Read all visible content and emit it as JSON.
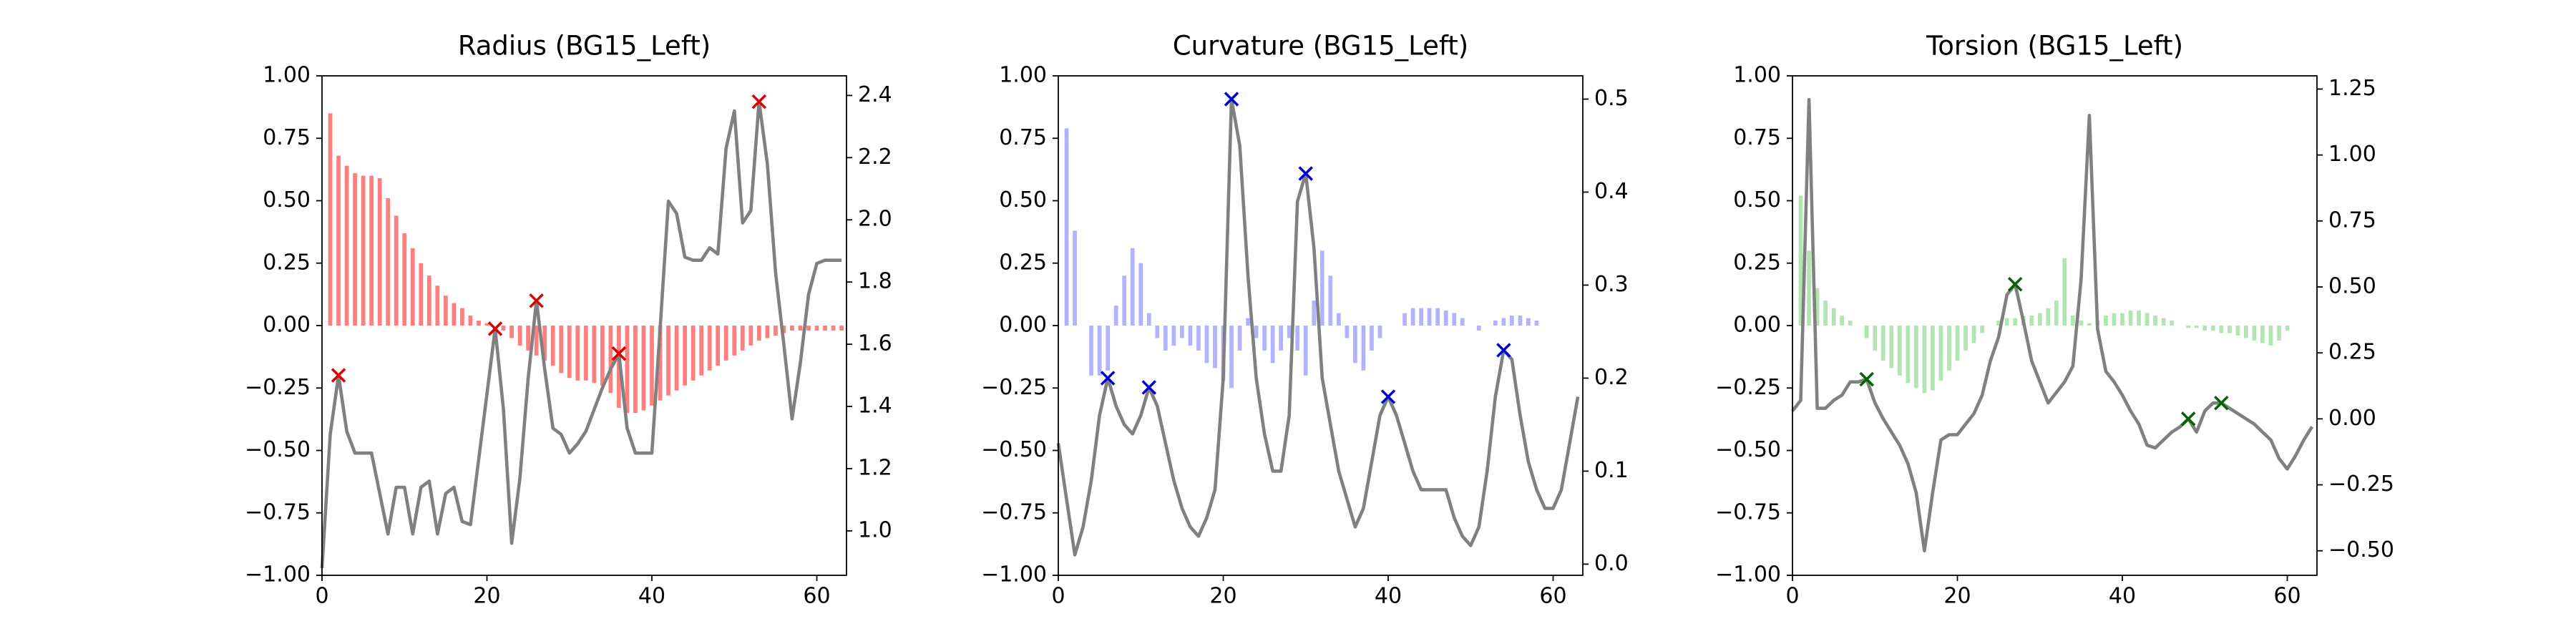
{
  "chart_data": [
    {
      "type": "combo",
      "title": "Radius (BG15_Left)",
      "x": [
        0,
        1,
        2,
        3,
        4,
        5,
        6,
        7,
        8,
        9,
        10,
        11,
        12,
        13,
        14,
        15,
        16,
        17,
        18,
        19,
        20,
        21,
        22,
        23,
        24,
        25,
        26,
        27,
        28,
        29,
        30,
        31,
        32,
        33,
        34,
        35,
        36,
        37,
        38,
        39,
        40,
        41,
        42,
        43,
        44,
        45,
        46,
        47,
        48,
        49,
        50,
        51,
        52,
        53,
        54,
        55,
        56,
        57,
        58,
        59,
        60,
        61,
        62,
        63
      ],
      "xlim": [
        0,
        63.6
      ],
      "xticks": [
        0,
        20,
        40,
        60
      ],
      "ylim": [
        -1,
        1
      ],
      "yticks": [
        {
          "value": -1,
          "label": "−1.00"
        },
        {
          "value": -0.75,
          "label": "−0.75"
        },
        {
          "value": -0.5,
          "label": "−0.50"
        },
        {
          "value": -0.25,
          "label": "−0.25"
        },
        {
          "value": 0,
          "label": "0.00"
        },
        0.25,
        {
          "value": 0.5,
          "label": "0.50"
        },
        0.75,
        {
          "value": 1,
          "label": "1.00"
        }
      ],
      "y2lim": [
        0.857,
        2.463
      ],
      "y2ticks": [
        {
          "value": 1,
          "label": "1.0"
        },
        1.2,
        1.4,
        1.6,
        1.8,
        {
          "value": 2,
          "label": "2.0"
        },
        2.2,
        2.4
      ],
      "series": [
        {
          "type": "bar",
          "color": "#ff0000",
          "alpha": 0.5,
          "values": [
            0,
            0.85,
            0.68,
            0.64,
            0.61,
            0.6,
            0.6,
            0.59,
            0.51,
            0.44,
            0.37,
            0.31,
            0.25,
            0.2,
            0.16,
            0.12,
            0.09,
            0.07,
            0.04,
            0.02,
            0.01,
            0,
            -0.02,
            -0.05,
            -0.08,
            -0.1,
            -0.12,
            -0.14,
            -0.16,
            -0.19,
            -0.21,
            -0.22,
            -0.22,
            -0.23,
            -0.24,
            -0.27,
            -0.33,
            -0.35,
            -0.35,
            -0.34,
            -0.32,
            -0.3,
            -0.28,
            -0.26,
            -0.24,
            -0.22,
            -0.2,
            -0.18,
            -0.16,
            -0.14,
            -0.12,
            -0.1,
            -0.08,
            -0.06,
            -0.05,
            -0.04,
            -0.03,
            -0.02,
            -0.02,
            -0.02,
            -0.02,
            -0.02,
            -0.02,
            -0.02
          ]
        },
        {
          "type": "line",
          "axis": "y2",
          "color": "#808080",
          "values": [
            0.88,
            1.31,
            1.5,
            1.32,
            1.25,
            1.25,
            1.25,
            1.12,
            0.99,
            1.14,
            1.14,
            0.99,
            1.14,
            1.16,
            0.99,
            1.12,
            1.14,
            1.03,
            1.02,
            1.23,
            1.44,
            1.65,
            1.39,
            0.96,
            1.17,
            1.49,
            1.74,
            1.52,
            1.33,
            1.31,
            1.25,
            1.28,
            1.32,
            1.39,
            1.46,
            1.52,
            1.57,
            1.33,
            1.25,
            1.25,
            1.25,
            1.65,
            2.06,
            2.02,
            1.88,
            1.87,
            1.87,
            1.91,
            1.89,
            2.23,
            2.35,
            1.99,
            2.03,
            2.38,
            2.18,
            1.83,
            1.6,
            1.36,
            1.54,
            1.76,
            1.86,
            1.87,
            1.87,
            1.87
          ]
        },
        {
          "type": "scatter",
          "axis": "y2",
          "color": "#dd0000",
          "x": [
            2,
            21,
            26,
            36,
            53
          ],
          "values": [
            1.5,
            1.65,
            1.74,
            1.57,
            2.38
          ]
        }
      ]
    },
    {
      "type": "combo",
      "title": "Curvature (BG15_Left)",
      "x": [
        0,
        1,
        2,
        3,
        4,
        5,
        6,
        7,
        8,
        9,
        10,
        11,
        12,
        13,
        14,
        15,
        16,
        17,
        18,
        19,
        20,
        21,
        22,
        23,
        24,
        25,
        26,
        27,
        28,
        29,
        30,
        31,
        32,
        33,
        34,
        35,
        36,
        37,
        38,
        39,
        40,
        41,
        42,
        43,
        44,
        45,
        46,
        47,
        48,
        49,
        50,
        51,
        52,
        53,
        54,
        55,
        56,
        57,
        58,
        59,
        60,
        61,
        62,
        63
      ],
      "xlim": [
        0,
        63.6
      ],
      "xticks": [
        0,
        20,
        40,
        60
      ],
      "ylim": [
        -1,
        1
      ],
      "yticks": [
        {
          "value": -1,
          "label": "−1.00"
        },
        {
          "value": -0.75,
          "label": "−0.75"
        },
        {
          "value": -0.5,
          "label": "−0.50"
        },
        {
          "value": -0.25,
          "label": "−0.25"
        },
        {
          "value": 0,
          "label": "0.00"
        },
        0.25,
        {
          "value": 0.5,
          "label": "0.50"
        },
        0.75,
        {
          "value": 1,
          "label": "1.00"
        }
      ],
      "y2lim": [
        -0.012,
        0.525
      ],
      "y2ticks": [
        {
          "value": 0,
          "label": "0.0"
        },
        0.1,
        0.2,
        0.3,
        0.4,
        0.5
      ],
      "series": [
        {
          "type": "bar",
          "color": "#0000ff",
          "alpha": 0.3,
          "values": [
            0,
            0.79,
            0.38,
            0,
            -0.2,
            -0.2,
            -0.18,
            0.08,
            0.2,
            0.31,
            0.25,
            0.05,
            -0.05,
            -0.1,
            -0.08,
            -0.05,
            -0.08,
            -0.1,
            -0.15,
            -0.17,
            -0.22,
            -0.25,
            -0.1,
            0.03,
            -0.05,
            -0.1,
            -0.15,
            -0.1,
            -0.05,
            -0.1,
            -0.2,
            0.1,
            0.3,
            0.2,
            0.05,
            -0.05,
            -0.15,
            -0.18,
            -0.1,
            -0.05,
            0,
            0,
            0.05,
            0.07,
            0.07,
            0.07,
            0.07,
            0.06,
            0.05,
            0.03,
            0,
            -0.02,
            0,
            0.02,
            0.03,
            0.04,
            0.04,
            0.03,
            0.02,
            0,
            0,
            0,
            0,
            0
          ]
        },
        {
          "type": "line",
          "axis": "y2",
          "color": "#808080",
          "values": [
            0.13,
            0.07,
            0.01,
            0.04,
            0.09,
            0.16,
            0.2,
            0.17,
            0.15,
            0.14,
            0.16,
            0.19,
            0.17,
            0.13,
            0.09,
            0.06,
            0.04,
            0.03,
            0.05,
            0.08,
            0.2,
            0.5,
            0.45,
            0.31,
            0.2,
            0.14,
            0.1,
            0.1,
            0.16,
            0.39,
            0.42,
            0.34,
            0.2,
            0.15,
            0.1,
            0.07,
            0.04,
            0.06,
            0.11,
            0.16,
            0.18,
            0.16,
            0.13,
            0.1,
            0.08,
            0.08,
            0.08,
            0.08,
            0.05,
            0.03,
            0.02,
            0.04,
            0.1,
            0.18,
            0.23,
            0.22,
            0.16,
            0.11,
            0.08,
            0.06,
            0.06,
            0.08,
            0.13,
            0.18
          ]
        },
        {
          "type": "scatter",
          "axis": "y2",
          "color": "#0000cc",
          "x": [
            6,
            11,
            21,
            30,
            40,
            54
          ],
          "values": [
            0.2,
            0.19,
            0.5,
            0.42,
            0.18,
            0.23
          ]
        }
      ]
    },
    {
      "type": "combo",
      "title": "Torsion (BG15_Left)",
      "x": [
        0,
        1,
        2,
        3,
        4,
        5,
        6,
        7,
        8,
        9,
        10,
        11,
        12,
        13,
        14,
        15,
        16,
        17,
        18,
        19,
        20,
        21,
        22,
        23,
        24,
        25,
        26,
        27,
        28,
        29,
        30,
        31,
        32,
        33,
        34,
        35,
        36,
        37,
        38,
        39,
        40,
        41,
        42,
        43,
        44,
        45,
        46,
        47,
        48,
        49,
        50,
        51,
        52,
        53,
        54,
        55,
        56,
        57,
        58,
        59,
        60,
        61,
        62,
        63
      ],
      "xlim": [
        0,
        63.6
      ],
      "xticks": [
        0,
        20,
        40,
        60
      ],
      "ylim": [
        -1,
        1
      ],
      "yticks": [
        {
          "value": -1,
          "label": "−1.00"
        },
        {
          "value": -0.75,
          "label": "−0.75"
        },
        {
          "value": -0.5,
          "label": "−0.50"
        },
        {
          "value": -0.25,
          "label": "−0.25"
        },
        {
          "value": 0,
          "label": "0.00"
        },
        0.25,
        {
          "value": 0.5,
          "label": "0.50"
        },
        0.75,
        {
          "value": 1,
          "label": "1.00"
        }
      ],
      "y2lim": [
        -0.593,
        1.3
      ],
      "y2ticks": [
        {
          "value": -0.5,
          "label": "−0.50"
        },
        {
          "value": -0.25,
          "label": "−0.25"
        },
        {
          "value": 0,
          "label": "0.00"
        },
        0.25,
        {
          "value": 0.5,
          "label": "0.50"
        },
        0.75,
        {
          "value": 1,
          "label": "1.00"
        },
        1.25
      ],
      "series": [
        {
          "type": "bar",
          "color": "#00aa00",
          "alpha": 0.3,
          "values": [
            0,
            0.52,
            0.3,
            0.15,
            0.1,
            0.07,
            0.04,
            0.02,
            0,
            -0.05,
            -0.1,
            -0.14,
            -0.17,
            -0.2,
            -0.23,
            -0.25,
            -0.27,
            -0.26,
            -0.22,
            -0.18,
            -0.14,
            -0.1,
            -0.07,
            -0.03,
            0,
            0.02,
            0.03,
            0.03,
            0.04,
            0.04,
            0.05,
            0.07,
            0.1,
            0.27,
            0.04,
            0.02,
            0.01,
            0.02,
            0.04,
            0.05,
            0.05,
            0.06,
            0.06,
            0.05,
            0.04,
            0.03,
            0.02,
            0,
            -0.01,
            -0.01,
            -0.02,
            -0.02,
            -0.03,
            -0.03,
            -0.04,
            -0.05,
            -0.06,
            -0.07,
            -0.08,
            -0.06,
            -0.02,
            0,
            0,
            0
          ]
        },
        {
          "type": "line",
          "axis": "y2",
          "color": "#808080",
          "values": [
            0.03,
            0.07,
            1.21,
            0.04,
            0.04,
            0.07,
            0.09,
            0.14,
            0.14,
            0.15,
            0.06,
            0,
            -0.05,
            -0.1,
            -0.17,
            -0.28,
            -0.5,
            -0.28,
            -0.08,
            -0.06,
            -0.06,
            -0.02,
            0.02,
            0.09,
            0.22,
            0.31,
            0.47,
            0.51,
            0.37,
            0.22,
            0.14,
            0.06,
            0.1,
            0.14,
            0.2,
            0.53,
            1.15,
            0.34,
            0.18,
            0.14,
            0.09,
            0.03,
            -0.02,
            -0.1,
            -0.11,
            -0.08,
            -0.05,
            -0.03,
            0,
            -0.05,
            0.03,
            0.06,
            0.06,
            0.04,
            0.02,
            0,
            -0.02,
            -0.05,
            -0.08,
            -0.15,
            -0.19,
            -0.14,
            -0.08,
            -0.03
          ]
        },
        {
          "type": "scatter",
          "axis": "y2",
          "color": "#006400",
          "x": [
            9,
            27,
            48,
            52
          ],
          "values": [
            0.15,
            0.51,
            0,
            0.06
          ]
        }
      ]
    }
  ]
}
